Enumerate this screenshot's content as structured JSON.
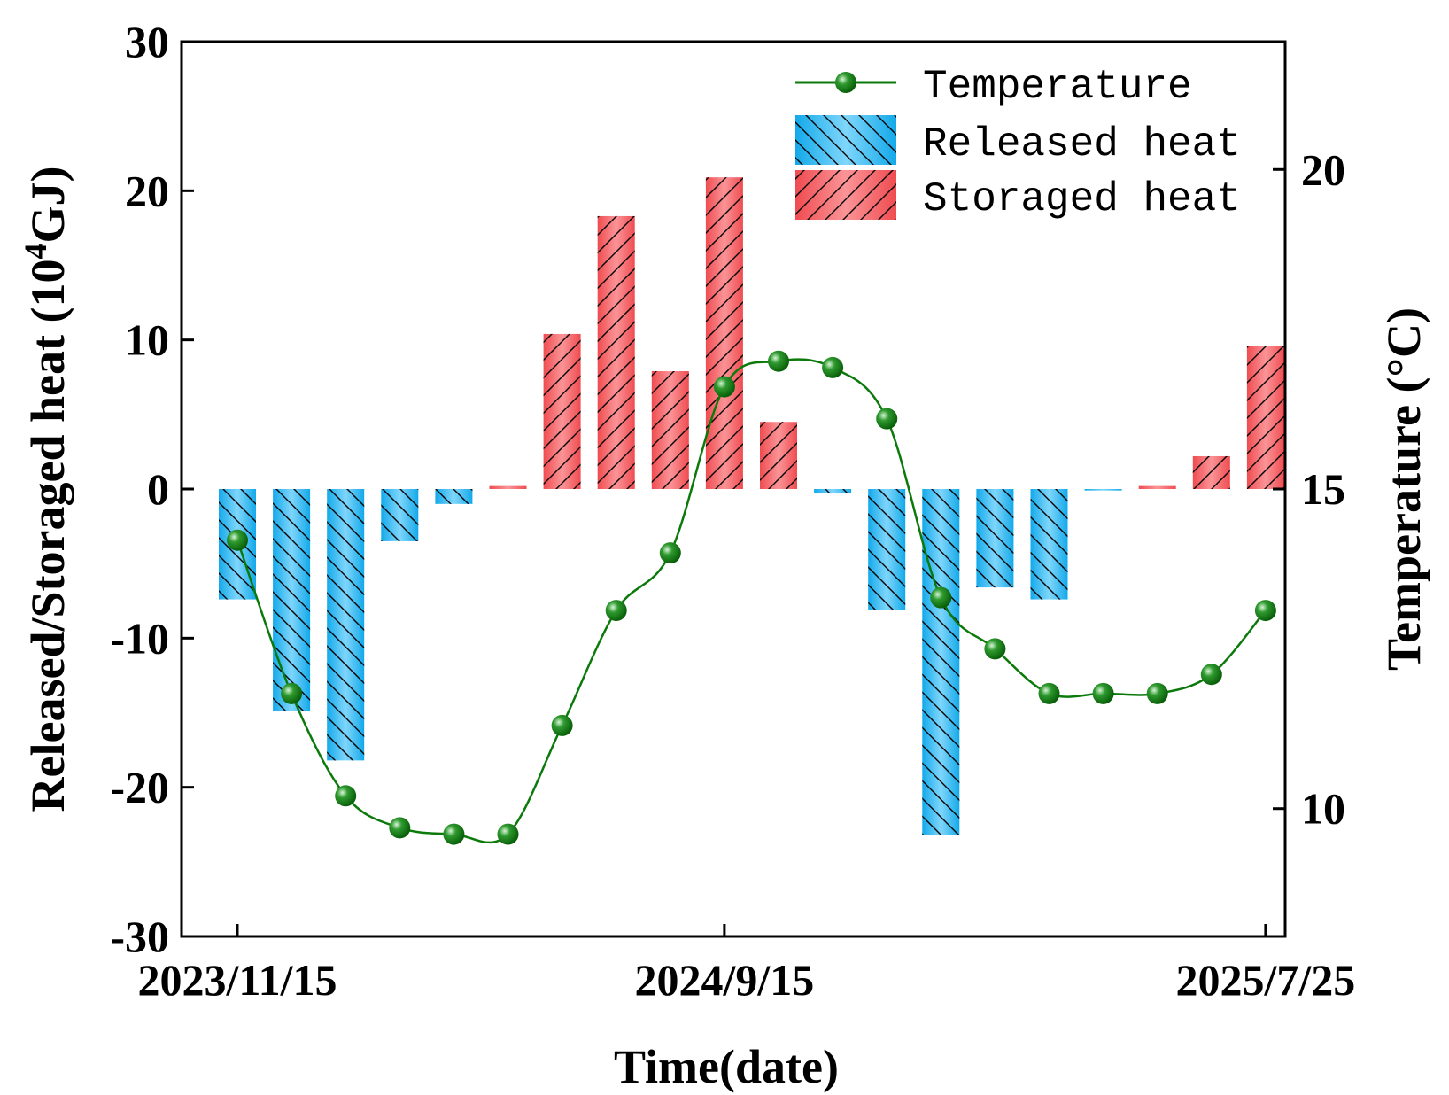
{
  "chart_data": {
    "type": "bar",
    "title": "",
    "xlabel": "Time(date)",
    "ylabel_left_text": "Released/Storaged heat (10",
    "ylabel_left_sup": "4",
    "ylabel_left_unit": "GJ)",
    "ylabel_right": "Temperature  (°C)",
    "ylim_left": [
      -30,
      30
    ],
    "ylim_right": [
      8,
      22
    ],
    "left_ticks": [
      "30",
      "20",
      "10",
      "0",
      "-10",
      "-20",
      "-30"
    ],
    "right_ticks": [
      "20",
      "15",
      "10"
    ],
    "x_ticks": [
      "2023/11/15",
      "2024/9/15",
      "2025/7/25"
    ],
    "x_tick_indices": [
      0,
      9,
      19
    ],
    "legend_position": "top-right",
    "legend": {
      "temperature": "Temperature",
      "released": "Released heat",
      "storaged": "Storaged heat"
    },
    "colors": {
      "released": "#1eb4f0",
      "storaged": "#f25a5c",
      "temperature": "#0b7a0b"
    },
    "heat": [
      -7.4,
      -14.9,
      -18.2,
      -3.5,
      -1.0,
      0.2,
      10.4,
      18.3,
      7.9,
      20.9,
      4.5,
      -0.3,
      -8.1,
      -23.2,
      -6.6,
      -7.4,
      -0.1,
      0.2,
      2.2,
      9.6
    ],
    "temperature": [
      14.2,
      11.8,
      10.2,
      9.7,
      9.6,
      9.6,
      11.3,
      13.1,
      14.0,
      16.6,
      17.0,
      16.9,
      16.1,
      13.3,
      12.5,
      11.8,
      11.8,
      11.8,
      12.1,
      13.1
    ]
  }
}
